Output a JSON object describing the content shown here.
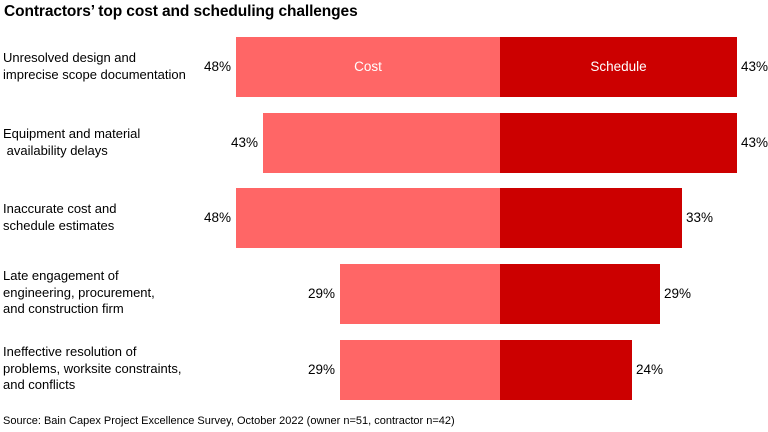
{
  "title": "Contractors’ top cost and scheduling challenges",
  "source": "Source: Bain Capex Project Excellence Survey, October 2022 (owner n=51, contractor n=42)",
  "colors": {
    "cost": "#FF6666",
    "schedule": "#CC0000"
  },
  "chart_data": {
    "type": "bar",
    "orientation": "horizontal-diverging",
    "title": "Contractors’ top cost and scheduling challenges",
    "categories": [
      "Unresolved design and imprecise scope documentation",
      "Equipment and material availability delays",
      "Inaccurate cost and schedule estimates",
      "Late engagement of engineering, procurement, and construction firm",
      "Ineffective resolution of problems, worksite constraints, and conflicts"
    ],
    "series": [
      {
        "name": "Cost",
        "color": "#FF6666",
        "values": [
          48,
          43,
          48,
          29,
          29
        ]
      },
      {
        "name": "Schedule",
        "color": "#CC0000",
        "values": [
          43,
          43,
          33,
          29,
          24
        ]
      }
    ],
    "value_format": "percent",
    "xlabel": "",
    "ylabel": "",
    "grid": false,
    "legend": "inline labels on first bar"
  },
  "rows": [
    {
      "label": "Unresolved design and\nimprecise scope documentation",
      "cost": "48%",
      "schedule": "43%",
      "cost_inlabel": "Cost",
      "schedule_inlabel": "Schedule"
    },
    {
      "label": "Equipment and material\n availability delays",
      "cost": "43%",
      "schedule": "43%"
    },
    {
      "label": "Inaccurate cost and\nschedule estimates",
      "cost": "48%",
      "schedule": "33%"
    },
    {
      "label": "Late engagement of\nengineering, procurement,\nand construction firm",
      "cost": "29%",
      "schedule": "29%"
    },
    {
      "label": "Ineffective resolution of\nproblems, worksite constraints,\nand conflicts",
      "cost": "29%",
      "schedule": "24%"
    }
  ]
}
